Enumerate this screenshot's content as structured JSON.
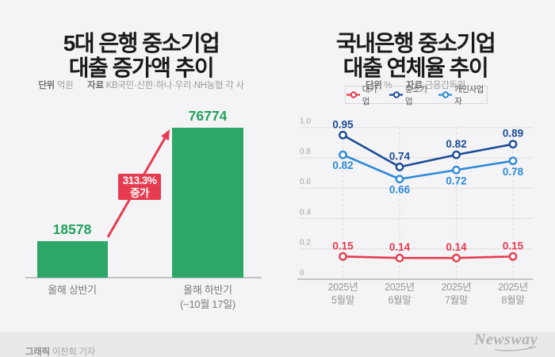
{
  "colors": {
    "background": "#f4f4f6",
    "footer_bg": "#e9e9ec",
    "bar_green": "#2ca768",
    "value_green": "#21a05c",
    "accent_red": "#e73c50",
    "navy": "#1b4c96",
    "light_blue": "#2f8ad8",
    "grid_gray": "#dedee1",
    "axis_gray": "#b3b3b6"
  },
  "left_chart": {
    "title_line1": "5대 은행 중소기업",
    "title_line2": "대출 증가액 추이",
    "unit_label": "단위",
    "unit_value": "억원",
    "source_label": "자료",
    "source_value": "KB국민·신한·하나·우리·NH농협 각 사",
    "chart_data": {
      "type": "bar",
      "categories": [
        [
          "올해 상반기"
        ],
        [
          "올해 하반기",
          "(~10월 17일)"
        ]
      ],
      "values": [
        18578,
        76774
      ],
      "value_labels": [
        "18578",
        "76774"
      ],
      "annotation": {
        "line1": "313.3%",
        "line2": "증가"
      }
    }
  },
  "right_chart": {
    "title_line1": "국내은행 중소기업",
    "title_line2": "대출 연체율 추이",
    "unit_label": "단위",
    "unit_value": "%",
    "source_label": "자료",
    "source_value": "금융감독원",
    "chart_data": {
      "type": "line",
      "x_labels": [
        [
          "2025년",
          "5월말"
        ],
        [
          "2025년",
          "6월말"
        ],
        [
          "2025년",
          "7월말"
        ],
        [
          "2025년",
          "8월말"
        ]
      ],
      "series": [
        {
          "name": "대기업",
          "color": "#e73c50",
          "values": [
            0.15,
            0.14,
            0.14,
            0.15
          ],
          "label_side": "above"
        },
        {
          "name": "중소기업",
          "color": "#1b4c96",
          "values": [
            0.95,
            0.74,
            0.82,
            0.89
          ],
          "label_side": "above"
        },
        {
          "name": "개인사업자",
          "color": "#2f8ad8",
          "values": [
            0.82,
            0.66,
            0.72,
            0.78
          ],
          "label_side": "below"
        }
      ],
      "ylim": [
        0,
        1.0
      ],
      "yticks": [
        "0",
        "0.2",
        "0.4",
        "0.6",
        "0.8",
        "1.0"
      ],
      "grid": true,
      "legend_position": "top"
    }
  },
  "footer": {
    "credit_label": "그래픽",
    "credit_value": "이찬희 기자",
    "logo_text": "Newsway"
  }
}
